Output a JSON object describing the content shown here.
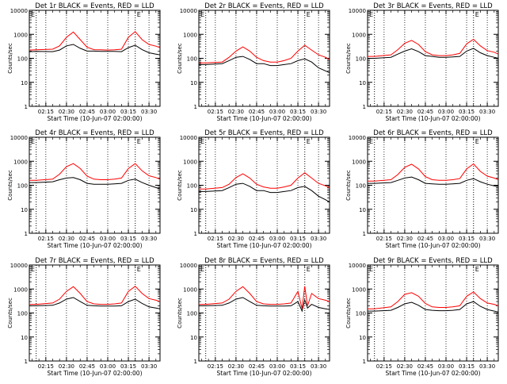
{
  "figure": {
    "xlabel": "Start Time (10-Jun-07 02:00:00)",
    "ylabel": "Counts/sec",
    "x_ticks": [
      "02:15",
      "02:30",
      "02:45",
      "03:00",
      "03:15",
      "03:30"
    ],
    "y_ticks": [
      "1",
      "10",
      "100",
      "1000",
      "10000"
    ],
    "marker_left": "E",
    "marker_right": "E",
    "colors": {
      "events": "#000000",
      "lld": "#ff0000",
      "axes": "#000000"
    }
  },
  "chart_data": [
    {
      "type": "line",
      "title": "Det 1r BLACK = Events, RED = LLD",
      "xlabel": "Start Time (10-Jun-07 02:00:00)",
      "ylabel": "Counts/sec",
      "y_scale": "log",
      "ylim": [
        1,
        10000
      ],
      "xlim": [
        "02:03",
        "03:38"
      ],
      "vlines": [
        "02:08",
        "03:20"
      ],
      "x": [
        "02:03",
        "02:08",
        "02:20",
        "02:25",
        "02:30",
        "02:35",
        "02:40",
        "02:45",
        "02:50",
        "02:55",
        "03:00",
        "03:05",
        "03:10",
        "03:15",
        "03:20",
        "03:25",
        "03:30",
        "03:35",
        "03:38"
      ],
      "series": [
        {
          "name": "BLACK = Events",
          "color": "#000000",
          "values": [
            190,
            195,
            190,
            220,
            330,
            380,
            260,
            200,
            200,
            195,
            195,
            195,
            190,
            280,
            350,
            230,
            170,
            150,
            140
          ]
        },
        {
          "name": "RED = LLD",
          "color": "#ff0000",
          "values": [
            220,
            225,
            240,
            330,
            750,
            1250,
            600,
            290,
            230,
            225,
            220,
            225,
            240,
            750,
            1300,
            600,
            380,
            320,
            280
          ]
        }
      ]
    },
    {
      "type": "line",
      "title": "Det 2r BLACK = Events, RED = LLD",
      "xlabel": "Start Time (10-Jun-07 02:00:00)",
      "ylabel": "Counts/sec",
      "y_scale": "log",
      "ylim": [
        1,
        10000
      ],
      "xlim": [
        "02:03",
        "03:38"
      ],
      "vlines": [
        "02:08",
        "03:20"
      ],
      "x": [
        "02:03",
        "02:08",
        "02:20",
        "02:25",
        "02:30",
        "02:35",
        "02:40",
        "02:45",
        "02:50",
        "02:55",
        "03:00",
        "03:05",
        "03:10",
        "03:15",
        "03:20",
        "03:25",
        "03:30",
        "03:35",
        "03:38"
      ],
      "series": [
        {
          "name": "BLACK = Events",
          "color": "#000000",
          "values": [
            55,
            55,
            60,
            80,
            110,
            120,
            90,
            60,
            60,
            50,
            50,
            55,
            60,
            80,
            95,
            70,
            40,
            30,
            25
          ]
        },
        {
          "name": "RED = LLD",
          "color": "#ff0000",
          "values": [
            65,
            65,
            70,
            110,
            200,
            300,
            200,
            110,
            80,
            70,
            70,
            80,
            100,
            200,
            350,
            220,
            140,
            110,
            90
          ]
        }
      ]
    },
    {
      "type": "line",
      "title": "Det 3r BLACK = Events, RED = LLD",
      "xlabel": "Start Time (10-Jun-07 02:00:00)",
      "ylabel": "Counts/sec",
      "y_scale": "log",
      "ylim": [
        1,
        10000
      ],
      "xlim": [
        "02:03",
        "03:38"
      ],
      "vlines": [
        "02:08",
        "03:20"
      ],
      "x": [
        "02:03",
        "02:08",
        "02:20",
        "02:25",
        "02:30",
        "02:35",
        "02:40",
        "02:45",
        "02:50",
        "02:55",
        "03:00",
        "03:05",
        "03:10",
        "03:15",
        "03:20",
        "03:25",
        "03:30",
        "03:35",
        "03:38"
      ],
      "series": [
        {
          "name": "BLACK = Events",
          "color": "#000000",
          "values": [
            100,
            100,
            110,
            150,
            200,
            250,
            190,
            130,
            120,
            110,
            110,
            115,
            120,
            200,
            260,
            170,
            130,
            110,
            100
          ]
        },
        {
          "name": "RED = LLD",
          "color": "#ff0000",
          "values": [
            120,
            120,
            140,
            230,
            420,
            560,
            380,
            190,
            140,
            130,
            130,
            140,
            160,
            400,
            620,
            330,
            210,
            180,
            150
          ]
        }
      ]
    },
    {
      "type": "line",
      "title": "Det 4r BLACK = Events, RED = LLD",
      "xlabel": "Start Time (10-Jun-07 02:00:00)",
      "ylabel": "Counts/sec",
      "y_scale": "log",
      "ylim": [
        1,
        10000
      ],
      "xlim": [
        "02:03",
        "03:38"
      ],
      "vlines": [
        "02:08",
        "03:20"
      ],
      "x": [
        "02:03",
        "02:08",
        "02:20",
        "02:25",
        "02:30",
        "02:35",
        "02:40",
        "02:45",
        "02:50",
        "02:55",
        "03:00",
        "03:05",
        "03:10",
        "03:15",
        "03:20",
        "03:25",
        "03:30",
        "03:35",
        "03:38"
      ],
      "series": [
        {
          "name": "BLACK = Events",
          "color": "#000000",
          "values": [
            130,
            130,
            140,
            170,
            200,
            210,
            170,
            120,
            110,
            110,
            110,
            115,
            120,
            160,
            180,
            130,
            100,
            80,
            70
          ]
        },
        {
          "name": "RED = LLD",
          "color": "#ff0000",
          "values": [
            160,
            160,
            180,
            290,
            600,
            800,
            500,
            240,
            180,
            170,
            170,
            180,
            200,
            500,
            800,
            400,
            250,
            210,
            180
          ]
        }
      ]
    },
    {
      "type": "line",
      "title": "Det 5r BLACK = Events, RED = LLD",
      "xlabel": "Start Time (10-Jun-07 02:00:00)",
      "ylabel": "Counts/sec",
      "y_scale": "log",
      "ylim": [
        1,
        10000
      ],
      "xlim": [
        "02:03",
        "03:38"
      ],
      "vlines": [
        "02:08",
        "03:20"
      ],
      "x": [
        "02:03",
        "02:08",
        "02:20",
        "02:25",
        "02:30",
        "02:35",
        "02:40",
        "02:45",
        "02:50",
        "02:55",
        "03:00",
        "03:05",
        "03:10",
        "03:15",
        "03:20",
        "03:25",
        "03:30",
        "03:35",
        "03:38"
      ],
      "series": [
        {
          "name": "BLACK = Events",
          "color": "#000000",
          "values": [
            55,
            55,
            60,
            80,
            110,
            120,
            90,
            60,
            60,
            50,
            50,
            55,
            60,
            80,
            90,
            60,
            35,
            25,
            20
          ]
        },
        {
          "name": "RED = LLD",
          "color": "#ff0000",
          "values": [
            70,
            70,
            80,
            110,
            210,
            300,
            200,
            110,
            85,
            75,
            75,
            85,
            100,
            200,
            330,
            200,
            120,
            95,
            80
          ]
        }
      ]
    },
    {
      "type": "line",
      "title": "Det 6r BLACK = Events, RED = LLD",
      "xlabel": "Start Time (10-Jun-07 02:00:00)",
      "ylabel": "Counts/sec",
      "y_scale": "log",
      "ylim": [
        1,
        10000
      ],
      "xlim": [
        "02:03",
        "03:38"
      ],
      "vlines": [
        "02:08",
        "03:20"
      ],
      "x": [
        "02:03",
        "02:08",
        "02:20",
        "02:25",
        "02:30",
        "02:35",
        "02:40",
        "02:45",
        "02:50",
        "02:55",
        "03:00",
        "03:05",
        "03:10",
        "03:15",
        "03:20",
        "03:25",
        "03:30",
        "03:35",
        "03:38"
      ],
      "series": [
        {
          "name": "BLACK = Events",
          "color": "#000000",
          "values": [
            120,
            120,
            130,
            160,
            200,
            220,
            170,
            120,
            115,
            110,
            110,
            115,
            120,
            160,
            190,
            140,
            110,
            95,
            90
          ]
        },
        {
          "name": "RED = LLD",
          "color": "#ff0000",
          "values": [
            150,
            150,
            170,
            280,
            560,
            750,
            480,
            230,
            170,
            160,
            160,
            170,
            190,
            480,
            780,
            380,
            240,
            200,
            170
          ]
        }
      ]
    },
    {
      "type": "line",
      "title": "Det 7r BLACK = Events, RED = LLD",
      "xlabel": "Start Time (10-Jun-07 02:00:00)",
      "ylabel": "Counts/sec",
      "y_scale": "log",
      "ylim": [
        1,
        10000
      ],
      "xlim": [
        "02:03",
        "03:38"
      ],
      "vlines": [
        "02:08",
        "03:20"
      ],
      "x": [
        "02:03",
        "02:08",
        "02:20",
        "02:25",
        "02:30",
        "02:35",
        "02:40",
        "02:45",
        "02:50",
        "02:55",
        "03:00",
        "03:05",
        "03:10",
        "03:15",
        "03:20",
        "03:25",
        "03:30",
        "03:35",
        "03:38"
      ],
      "series": [
        {
          "name": "BLACK = Events",
          "color": "#000000",
          "values": [
            200,
            200,
            210,
            260,
            380,
            440,
            300,
            210,
            200,
            195,
            195,
            195,
            200,
            300,
            380,
            250,
            180,
            160,
            150
          ]
        },
        {
          "name": "RED = LLD",
          "color": "#ff0000",
          "values": [
            230,
            230,
            260,
            380,
            800,
            1250,
            650,
            300,
            240,
            230,
            230,
            240,
            260,
            800,
            1300,
            650,
            400,
            340,
            300
          ]
        }
      ]
    },
    {
      "type": "line",
      "title": "Det 8r BLACK = Events, RED = LLD",
      "xlabel": "Start Time (10-Jun-07 02:00:00)",
      "ylabel": "Counts/sec",
      "y_scale": "log",
      "ylim": [
        1,
        10000
      ],
      "xlim": [
        "02:03",
        "03:38"
      ],
      "vlines": [
        "02:08",
        "03:20"
      ],
      "x": [
        "02:03",
        "02:08",
        "02:20",
        "02:25",
        "02:30",
        "02:35",
        "02:40",
        "02:45",
        "02:50",
        "02:55",
        "03:00",
        "03:05",
        "03:10",
        "03:15",
        "03:18",
        "03:20",
        "03:22",
        "03:25",
        "03:30",
        "03:35",
        "03:38"
      ],
      "series": [
        {
          "name": "BLACK = Events",
          "color": "#000000",
          "values": [
            200,
            200,
            210,
            260,
            380,
            440,
            300,
            210,
            200,
            195,
            195,
            195,
            200,
            300,
            120,
            350,
            160,
            230,
            170,
            150,
            140
          ]
        },
        {
          "name": "RED = LLD",
          "color": "#ff0000",
          "values": [
            230,
            230,
            260,
            380,
            800,
            1250,
            650,
            300,
            240,
            230,
            230,
            240,
            260,
            800,
            150,
            1300,
            200,
            650,
            400,
            340,
            300
          ]
        }
      ]
    },
    {
      "type": "line",
      "title": "Det 9r BLACK = Events, RED = LLD",
      "xlabel": "Start Time (10-Jun-07 02:00:00)",
      "ylabel": "Counts/sec",
      "y_scale": "log",
      "ylim": [
        1,
        10000
      ],
      "xlim": [
        "02:03",
        "03:38"
      ],
      "vlines": [
        "02:08",
        "03:20"
      ],
      "x": [
        "02:03",
        "02:08",
        "02:20",
        "02:25",
        "02:30",
        "02:35",
        "02:40",
        "02:45",
        "02:50",
        "02:55",
        "03:00",
        "03:05",
        "03:10",
        "03:15",
        "03:20",
        "03:25",
        "03:30",
        "03:35",
        "03:38"
      ],
      "series": [
        {
          "name": "BLACK = Events",
          "color": "#000000",
          "values": [
            120,
            120,
            130,
            170,
            240,
            280,
            210,
            140,
            130,
            125,
            125,
            130,
            140,
            240,
            300,
            190,
            140,
            120,
            110
          ]
        },
        {
          "name": "RED = LLD",
          "color": "#ff0000",
          "values": [
            150,
            150,
            180,
            300,
            600,
            700,
            500,
            250,
            180,
            170,
            170,
            180,
            200,
            500,
            750,
            400,
            260,
            230,
            200
          ]
        }
      ]
    }
  ]
}
